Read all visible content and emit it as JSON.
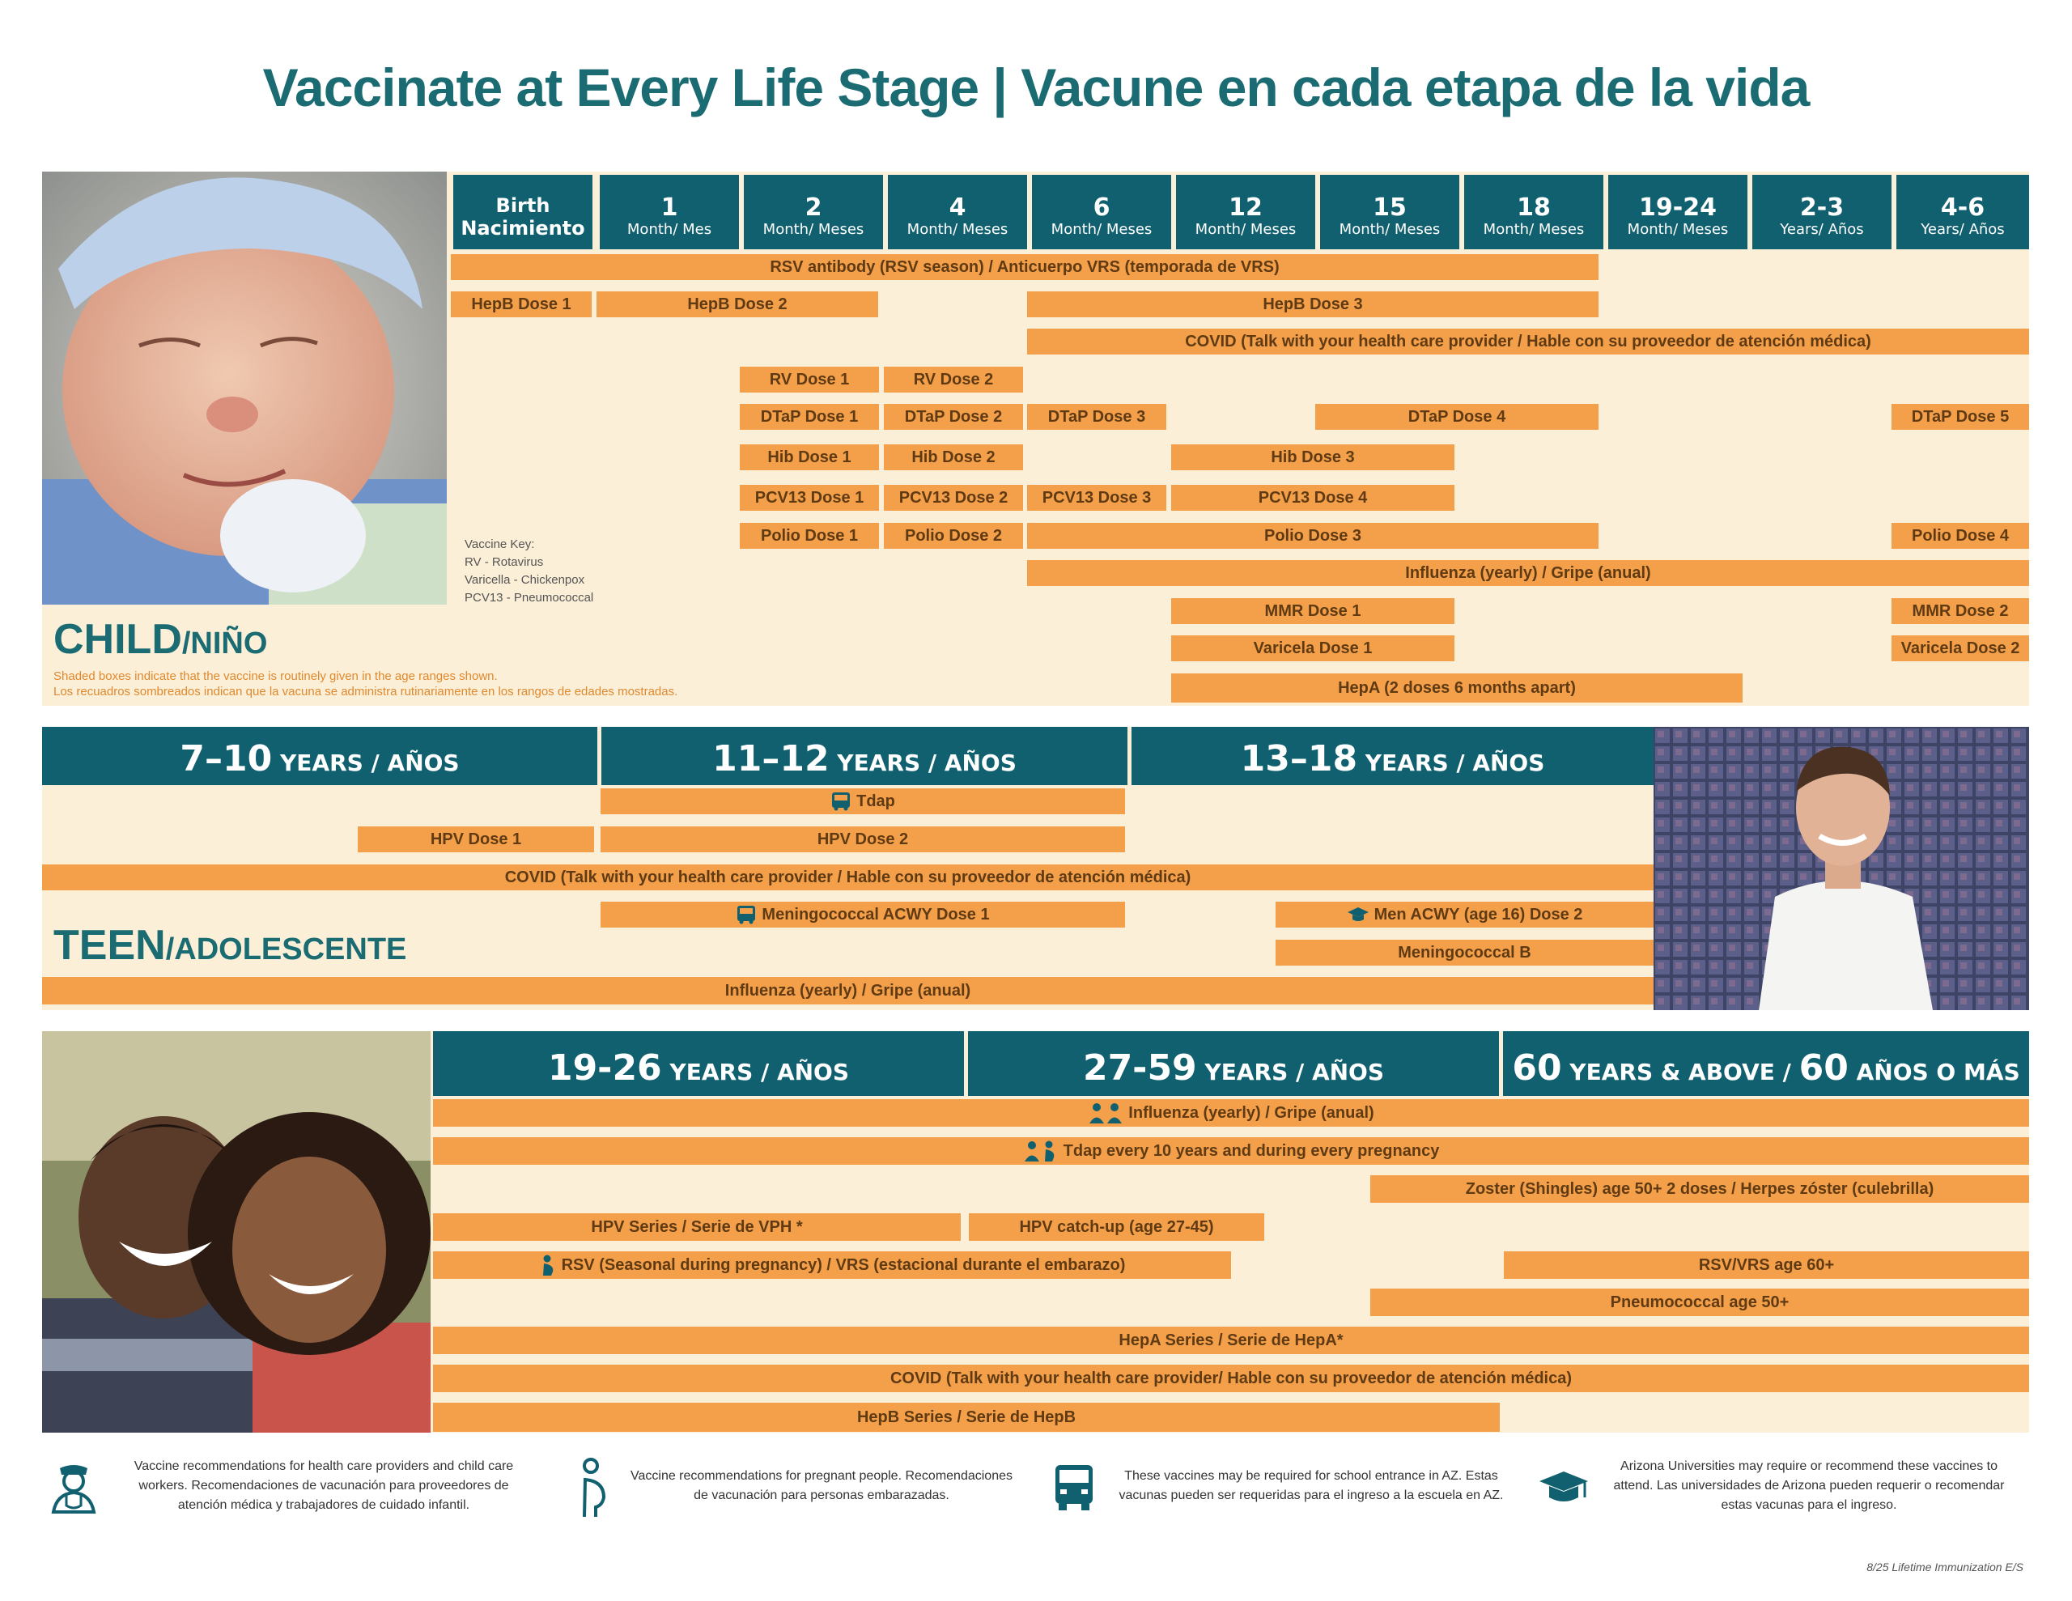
{
  "title": "Vaccinate at Every Life Stage | Vacune en cada etapa de la vida",
  "child": {
    "stage_main": "CHILD",
    "stage_sub": "/NIÑO",
    "note_1": "Shaded boxes indicate that the vaccine is routinely given in the age ranges shown.",
    "note_2": "Los recuadros sombreados indican que la vacuna se administra rutinariamente en los rangos de edades mostradas.",
    "key": [
      "Vaccine Key:",
      "RV - Rotavirus",
      "Varicella - Chickenpox",
      "PCV13 - Pneumococcal"
    ],
    "headers": [
      {
        "big": "Birth",
        "small": "Nacimiento"
      },
      {
        "big": "1",
        "small": "Month/ Mes"
      },
      {
        "big": "2",
        "small": "Month/ Meses"
      },
      {
        "big": "4",
        "small": "Month/ Meses"
      },
      {
        "big": "6",
        "small": "Month/ Meses"
      },
      {
        "big": "12",
        "small": "Month/ Meses"
      },
      {
        "big": "15",
        "small": "Month/ Meses"
      },
      {
        "big": "18",
        "small": "Month/ Meses"
      },
      {
        "big": "19-24",
        "small": "Month/ Meses"
      },
      {
        "big": "2-3",
        "small": "Years/ Años"
      },
      {
        "big": "4-6",
        "small": "Years/ Años"
      }
    ],
    "bars": {
      "rsv": "RSV antibody (RSV season) / Anticuerpo VRS (temporada de VRS)",
      "hepb1": "HepB Dose 1",
      "hepb2": "HepB Dose 2",
      "hepb3": "HepB Dose 3",
      "covid": "COVID (Talk with your health care provider / Hable con su proveedor de atención médica)",
      "rv1": "RV Dose 1",
      "rv2": "RV Dose 2",
      "dtap1": "DTaP Dose 1",
      "dtap2": "DTaP Dose 2",
      "dtap3": "DTaP Dose 3",
      "dtap4": "DTaP Dose 4",
      "dtap5": "DTaP Dose 5",
      "hib1": "Hib Dose 1",
      "hib2": "Hib Dose 2",
      "hib3": "Hib Dose 3",
      "pcv1": "PCV13 Dose 1",
      "pcv2": "PCV13 Dose 2",
      "pcv3": "PCV13 Dose 3",
      "pcv4": "PCV13 Dose 4",
      "polio1": "Polio Dose 1",
      "polio2": "Polio Dose 2",
      "polio3": "Polio Dose 3",
      "polio4": "Polio Dose 4",
      "flu": "Influenza (yearly) / Gripe (anual)",
      "mmr1": "MMR Dose 1",
      "mmr2": "MMR Dose 2",
      "var1": "Varicela Dose 1",
      "var2": "Varicela Dose 2",
      "hepa": "HepA (2 doses 6 months apart)"
    }
  },
  "teen": {
    "stage_main": "TEEN",
    "stage_sub": "/ADOLESCENTE",
    "headers": [
      {
        "num": "7–10",
        "label": " YEARS / AÑOS"
      },
      {
        "num": "11–12",
        "label": " YEARS / AÑOS"
      },
      {
        "num": "13–18",
        "label": " YEARS / AÑOS"
      }
    ],
    "bars": {
      "tdap": "Tdap",
      "hpv1": "HPV Dose 1",
      "hpv2": "HPV Dose 2",
      "covid": "COVID (Talk with your health care provider / Hable con su proveedor de atención médica)",
      "men1": "Meningococcal ACWY Dose 1",
      "men2": "Men ACWY (age 16) Dose 2",
      "menb": "Meningococcal B",
      "flu": "Influenza (yearly) / Gripe (anual)"
    }
  },
  "adult": {
    "headers": [
      {
        "num": "19-26",
        "label": " YEARS / AÑOS"
      },
      {
        "num": "27-59",
        "label": " YEARS / AÑOS"
      },
      {
        "num": "60",
        "label": " YEARS & ABOVE / ",
        "num2": "60",
        "label2": " AÑOS O MÁS"
      }
    ],
    "bars": {
      "flu": "Influenza (yearly) / Gripe (anual)",
      "tdap": "Tdap every 10 years and during every pregnancy",
      "zoster": "Zoster (Shingles) age 50+ 2 doses / Herpes zóster (culebrilla)",
      "hpv": "HPV Series / Serie de VPH *",
      "hpvcatch": "HPV catch-up (age 27-45)",
      "rsvpreg": "RSV (Seasonal during pregnancy) / VRS (estacional durante el embarazo)",
      "rsv60": "RSV/VRS age 60+",
      "pneumo": "Pneumococcal age 50+",
      "hepa": "HepA Series / Serie de HepA*",
      "covid": "COVID (Talk with your health care provider/  Hable con su proveedor de atención médica)",
      "hepb": "HepB Series / Serie de HepB"
    }
  },
  "legend": [
    {
      "icon": "health-worker-icon",
      "text": "Vaccine recommendations for health care providers and child care workers. Recomendaciones de vacunación para proveedores de atención médica y trabajadores de cuidado infantil."
    },
    {
      "icon": "pregnant-person-icon",
      "text": "Vaccine recommendations for pregnant people. Recomendaciones de vacunación para personas embarazadas."
    },
    {
      "icon": "school-bus-icon",
      "text": "These vaccines may be required for school entrance in AZ. Estas vacunas pueden ser requeridas para el ingreso a la escuela en AZ."
    },
    {
      "icon": "graduation-cap-icon",
      "text": "Arizona Universities may require or recommend these vaccines to attend. Las universidades de Arizona pueden requerir o recomendar estas vacunas para el ingreso."
    }
  ],
  "footer": "8/25 Lifetime Immunization E/S",
  "colors": {
    "header": "#11606f",
    "bar": "#f4a04a",
    "panel": "#fbefd7",
    "title": "#1b6b73"
  }
}
